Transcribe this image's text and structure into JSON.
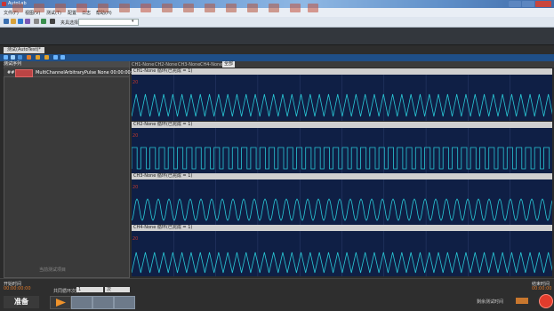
{
  "window": {
    "title": "AutoLab"
  },
  "menu": [
    "文件(F)",
    "视图(V)",
    "测试(T)",
    "配置",
    "日志",
    "帮助(H)"
  ],
  "toolbar": {
    "fixture_label": "夹具选择"
  },
  "tab": {
    "label": "测试(AutoTest)*"
  },
  "left_panel": {
    "column_header": "测试序列",
    "row_index": "##",
    "row_text": "MultiChannelArbitraryPulse None 00:00:00:10",
    "footer_button": "当前测试项目"
  },
  "channel_tabs": [
    "CH1-None",
    "CH2-None",
    "CH3-None",
    "CH4-None"
  ],
  "channel_tab_all": "全部",
  "channels": [
    {
      "header": "CH1-None  循环(已完成 = 1)",
      "y_value": "20"
    },
    {
      "header": "CH2-None  循环(已完成 = 1)",
      "y_value": "20"
    },
    {
      "header": "CH3-None  循环(已完成 = 1)",
      "y_value": "20"
    },
    {
      "header": "CH4-None  循环(已完成 = 1)",
      "y_value": "20"
    }
  ],
  "bottom": {
    "left_label": "开始时间",
    "left_value": "00:00:00:00",
    "right_label": "结束时间",
    "right_value": "00:00:00",
    "loop_label": "共同循环次数",
    "loop_value": "1",
    "unit": "次",
    "ready": "准备",
    "remaining_label": "剩余测试时间"
  },
  "colors": {
    "waveform": "#29c7d6",
    "plot_bg": "#0f1f45",
    "stop": "#e23c2c",
    "accent": "#e07a2a"
  }
}
